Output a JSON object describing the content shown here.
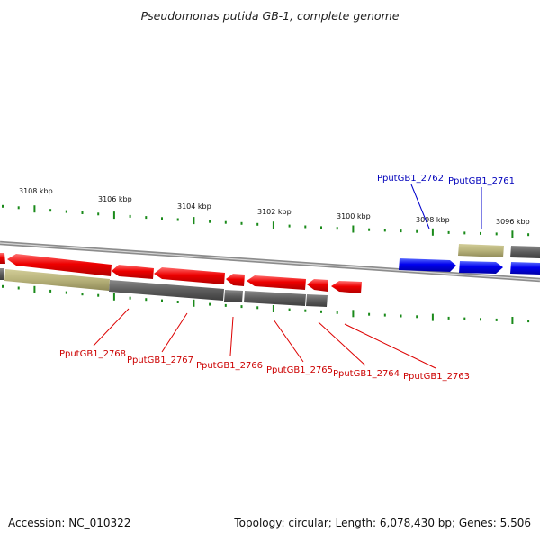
{
  "title": "Pseudomonas putida GB-1, complete genome",
  "footer": {
    "accession": "Accession: NC_010322",
    "summary": "Topology: circular; Length: 6,078,430 bp; Genes: 5,506"
  },
  "scale_labels": [
    "3108 kbp",
    "3106 kbp",
    "3104 kbp",
    "3102 kbp",
    "3100 kbp",
    "3098 kbp",
    "3096 kbp"
  ],
  "genes": {
    "reverse": [
      "PputGB1_2768",
      "PputGB1_2767",
      "PputGB1_2766",
      "PputGB1_2765",
      "PputGB1_2764",
      "PputGB1_2763"
    ],
    "forward": [
      "PputGB1_2762",
      "PputGB1_2761"
    ]
  },
  "colors": {
    "reverse_strand": "#ff0000",
    "forward_strand": "#0000ff",
    "cds_track": "#606060",
    "rna_track": "#b5b07a",
    "tick": "#1a8a1a",
    "backbone": "#8c8c8c"
  }
}
